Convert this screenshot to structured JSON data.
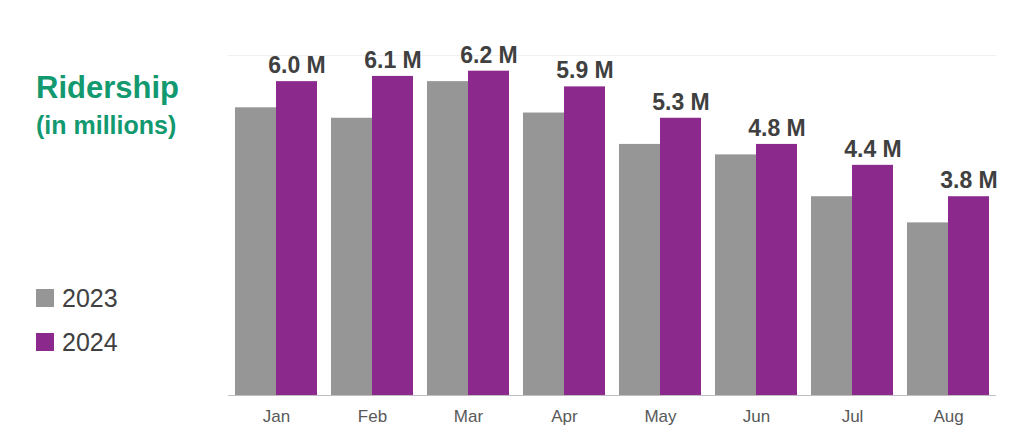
{
  "chart_data": {
    "type": "bar",
    "title": "Ridership",
    "subtitle": "(in millions)",
    "categories": [
      "Jan",
      "Feb",
      "Mar",
      "Apr",
      "May",
      "Jun",
      "Jul",
      "Aug"
    ],
    "series": [
      {
        "name": "2023",
        "color": "#969696",
        "values": [
          5.5,
          5.3,
          6.0,
          5.4,
          4.8,
          4.6,
          3.8,
          3.3
        ]
      },
      {
        "name": "2024",
        "color": "#8b2a8c",
        "values": [
          6.0,
          6.1,
          6.2,
          5.9,
          5.3,
          4.8,
          4.4,
          3.8
        ],
        "value_labels": [
          "6.0 M",
          "6.1 M",
          "6.2 M",
          "5.9 M",
          "5.3 M",
          "4.8 M",
          "4.4 M",
          "3.8 M"
        ]
      }
    ],
    "ylim": [
      0,
      6.5
    ],
    "yticks": [],
    "grid": false,
    "legend": "bottom-left",
    "data_labels": true,
    "tick_labels": "x"
  }
}
